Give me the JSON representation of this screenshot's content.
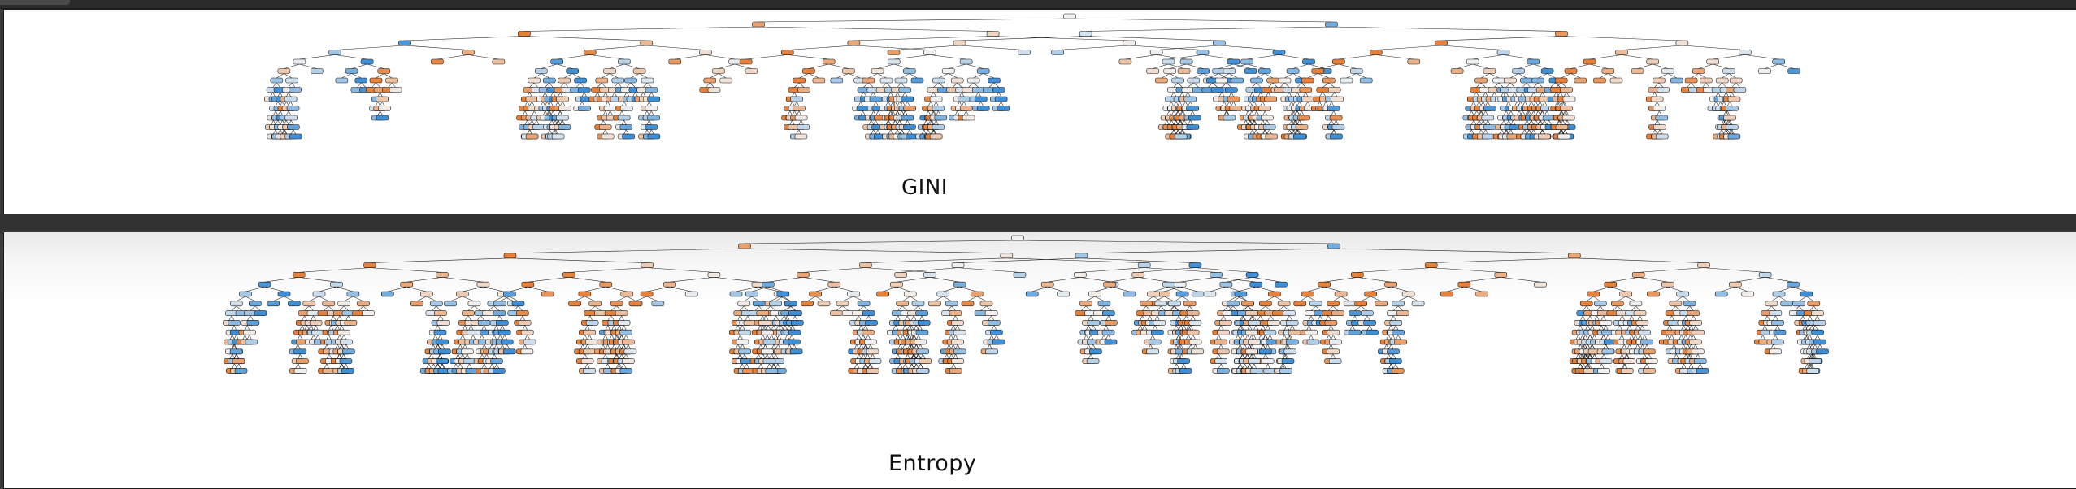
{
  "panels": [
    {
      "id": "gini",
      "caption": "GINI"
    },
    {
      "id": "entropy",
      "caption": "Entropy"
    }
  ],
  "colors": {
    "class_a": "#e5813a",
    "class_b": "#3e8fd6",
    "neutral": "#f2f2f2",
    "edge": "#222222",
    "node_border": "#1b1b1b"
  },
  "trees": {
    "gini": {
      "levels": 13,
      "root_branches": 6
    },
    "entropy": {
      "levels": 14,
      "root_branches": 5
    }
  }
}
